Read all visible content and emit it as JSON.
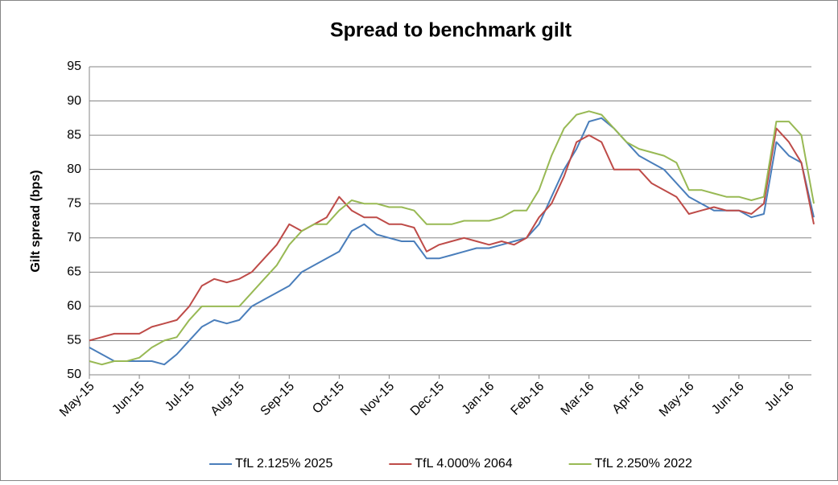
{
  "chart_data": {
    "type": "line",
    "title": "Spread to benchmark gilt",
    "y_label": "Gilt spread (bps)",
    "categories": [
      "May-15",
      null,
      null,
      null,
      "Jun-15",
      null,
      null,
      null,
      "Jul-15",
      null,
      null,
      null,
      "Aug-15",
      null,
      null,
      null,
      "Sep-15",
      null,
      null,
      null,
      "Oct-15",
      null,
      null,
      null,
      "Nov-15",
      null,
      null,
      null,
      "Dec-15",
      null,
      null,
      null,
      "Jan-16",
      null,
      null,
      null,
      "Feb-16",
      null,
      null,
      null,
      "Mar-16",
      null,
      null,
      null,
      "Apr-16",
      null,
      null,
      null,
      "May-16",
      null,
      null,
      null,
      "Jun-16",
      null,
      null,
      null,
      "Jul-16",
      null,
      null
    ],
    "series": [
      {
        "name": "TfL 2.125% 2025",
        "color": "#4a7ebb",
        "values": [
          54,
          53,
          52,
          52,
          52,
          52,
          51.5,
          53,
          55,
          57,
          58,
          57.5,
          58,
          60,
          61,
          62,
          63,
          65,
          66,
          67,
          68,
          71,
          72,
          70.5,
          70,
          69.5,
          69.5,
          67,
          67,
          67.5,
          68,
          68.5,
          68.5,
          69,
          69.5,
          70,
          72,
          76,
          80,
          83,
          87,
          87.5,
          86,
          84,
          82,
          81,
          80,
          78,
          76,
          75,
          74,
          74,
          74,
          73,
          73.5,
          84,
          82,
          81,
          73
        ]
      },
      {
        "name": "TfL 4.000% 2064",
        "color": "#be4b48",
        "values": [
          55,
          55.5,
          56,
          56,
          56,
          57,
          57.5,
          58,
          60,
          63,
          64,
          63.5,
          64,
          65,
          67,
          69,
          72,
          71,
          72,
          73,
          76,
          74,
          73,
          73,
          72,
          72,
          71.5,
          68,
          69,
          69.5,
          70,
          69.5,
          69,
          69.5,
          69,
          70,
          73,
          75,
          79,
          84,
          85,
          84,
          80,
          80,
          80,
          78,
          77,
          76,
          73.5,
          74,
          74.5,
          74,
          74,
          73.5,
          75,
          86,
          84,
          81,
          72
        ]
      },
      {
        "name": "TfL 2.250% 2022",
        "color": "#98b954",
        "values": [
          52,
          51.5,
          52,
          52,
          52.5,
          54,
          55,
          55.5,
          58,
          60,
          60,
          60,
          60,
          62,
          64,
          66,
          69,
          71,
          72,
          72,
          74,
          75.5,
          75,
          75,
          74.5,
          74.5,
          74,
          72,
          72,
          72,
          72.5,
          72.5,
          72.5,
          73,
          74,
          74,
          77,
          82,
          86,
          88,
          88.5,
          88,
          86,
          84,
          83,
          82.5,
          82,
          81,
          77,
          77,
          76.5,
          76,
          76,
          75.5,
          76,
          87,
          87,
          85,
          75
        ]
      }
    ],
    "ylim": [
      50,
      95
    ],
    "yticks": [
      50,
      55,
      60,
      65,
      70,
      75,
      80,
      85,
      90,
      95
    ],
    "grid": true,
    "legend": "bottom"
  }
}
